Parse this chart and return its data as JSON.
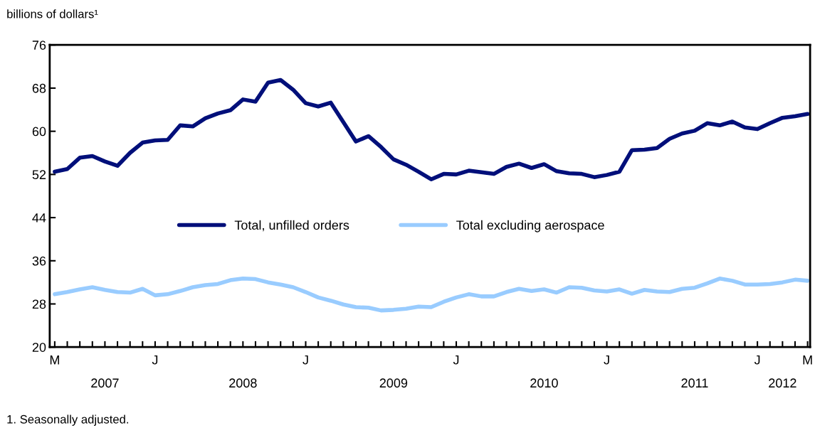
{
  "chart_data": {
    "type": "line",
    "ylabel": "billions of dollars¹",
    "categories": [
      "M",
      null,
      null,
      null,
      "\n2007",
      null,
      null,
      null,
      "J",
      null,
      null,
      null,
      null,
      null,
      null,
      "\n2008",
      null,
      null,
      null,
      null,
      "J",
      null,
      null,
      null,
      null,
      null,
      null,
      "\n2009",
      null,
      null,
      null,
      null,
      "J",
      null,
      null,
      null,
      null,
      null,
      null,
      "\n2010",
      null,
      null,
      null,
      null,
      "J",
      null,
      null,
      null,
      null,
      null,
      null,
      "\n2011",
      null,
      null,
      null,
      null,
      "J",
      null,
      "\n2012",
      null,
      "M"
    ],
    "series": [
      {
        "name": "Total, unfilled orders",
        "color": "#000f7a",
        "values": [
          52.5,
          53.0,
          55.1,
          55.4,
          54.4,
          53.6,
          56.0,
          57.9,
          58.3,
          58.4,
          61.1,
          60.9,
          62.4,
          63.3,
          63.9,
          65.9,
          65.5,
          69.0,
          69.5,
          67.7,
          65.2,
          64.6,
          65.3,
          61.7,
          58.1,
          59.1,
          57.1,
          54.8,
          53.8,
          52.5,
          51.1,
          52.1,
          52.0,
          52.7,
          52.4,
          52.1,
          53.4,
          54.0,
          53.2,
          53.9,
          52.6,
          52.2,
          52.1,
          51.5,
          51.9,
          52.5,
          56.5,
          56.6,
          56.9,
          58.6,
          59.6,
          60.1,
          61.5,
          61.1,
          61.8,
          60.7,
          60.4,
          61.5,
          62.5,
          62.8,
          63.2
        ]
      },
      {
        "name": "Total excluding aerospace",
        "color": "#99ccff",
        "values": [
          29.8,
          30.2,
          30.7,
          31.1,
          30.6,
          30.2,
          30.1,
          30.8,
          29.6,
          29.8,
          30.4,
          31.1,
          31.5,
          31.7,
          32.4,
          32.7,
          32.6,
          32.0,
          31.6,
          31.1,
          30.2,
          29.2,
          28.6,
          27.9,
          27.4,
          27.3,
          26.8,
          26.9,
          27.1,
          27.5,
          27.4,
          28.4,
          29.2,
          29.8,
          29.4,
          29.4,
          30.2,
          30.8,
          30.4,
          30.7,
          30.1,
          31.1,
          31.0,
          30.5,
          30.3,
          30.7,
          29.9,
          30.6,
          30.3,
          30.2,
          30.8,
          31.0,
          31.8,
          32.7,
          32.3,
          31.6,
          31.6,
          31.7,
          32.0,
          32.5,
          32.3
        ]
      }
    ],
    "ylim": [
      20,
      76
    ],
    "yticks": [
      20,
      28,
      36,
      44,
      52,
      60,
      68,
      76
    ],
    "legend": "center",
    "annotations": [
      "1. Seasonally adjusted."
    ]
  }
}
